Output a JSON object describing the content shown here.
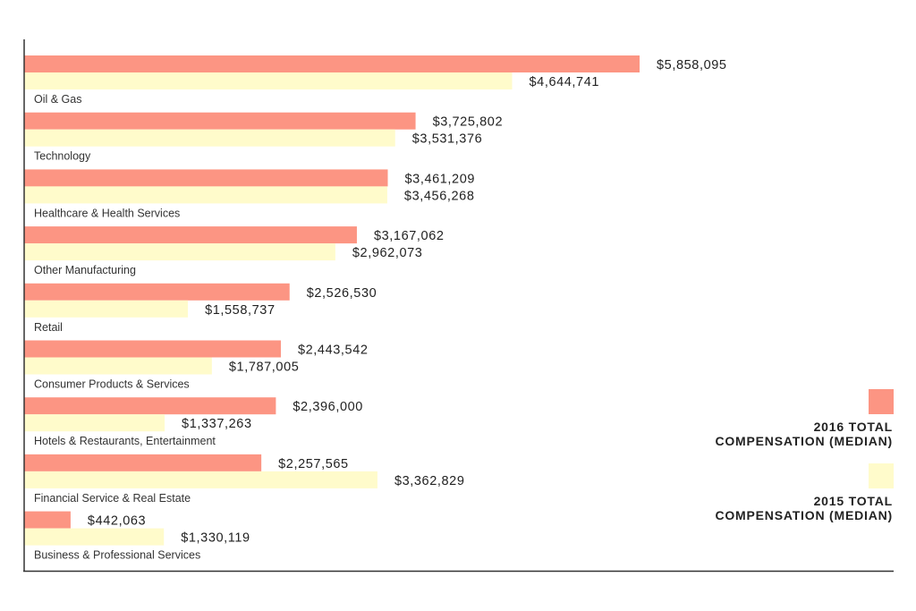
{
  "chart_data": {
    "type": "bar",
    "orientation": "horizontal",
    "categories": [
      "Oil & Gas",
      "Technology",
      "Healthcare & Health Services",
      "Other Manufacturing",
      "Retail",
      "Consumer Products & Services",
      "Hotels & Restaurants, Entertainment",
      "Financial Service & Real Estate",
      "Business & Professional Services"
    ],
    "series": [
      {
        "name": "2016 TOTAL COMPENSATION (MEDIAN)",
        "color": "#fc9583",
        "values": [
          5858095,
          3725802,
          3461209,
          3167062,
          2526530,
          2443542,
          2396000,
          2257565,
          442063
        ],
        "labels": [
          "$5,858,095",
          "$3,725,802",
          "$3,461,209",
          "$3,167,062",
          "$2,526,530",
          "$2,443,542",
          "$2,396,000",
          "$2,257,565",
          "$442,063"
        ]
      },
      {
        "name": "2015 TOTAL COMPENSATION (MEDIAN)",
        "color": "#fffbcb",
        "values": [
          4644741,
          3531376,
          3456268,
          2962073,
          1558737,
          1787005,
          1337263,
          3362829,
          1330119
        ],
        "labels": [
          "$4,644,741",
          "$3,531,376",
          "$3,456,268",
          "$2,962,073",
          "$1,558,737",
          "$1,787,005",
          "$1,337,263",
          "$3,362,829",
          "$1,330,119"
        ]
      }
    ],
    "title": "",
    "xlabel": "",
    "ylabel": "",
    "xlim": [
      0,
      6000000
    ],
    "grid": false,
    "legend": "right",
    "legend_labels": [
      [
        "2016 TOTAL",
        "COMPENSATION (MEDIAN)"
      ],
      [
        "2015 TOTAL",
        "COMPENSATION (MEDIAN)"
      ]
    ]
  }
}
